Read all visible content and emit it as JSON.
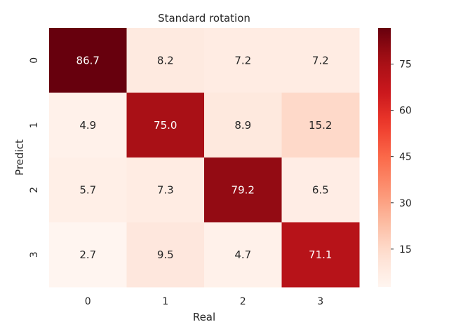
{
  "chart_data": {
    "type": "heatmap",
    "title": "Standard rotation",
    "xlabel": "Real",
    "ylabel": "Predict",
    "x_categories": [
      "0",
      "1",
      "2",
      "3"
    ],
    "y_categories": [
      "0",
      "1",
      "2",
      "3"
    ],
    "values": [
      [
        86.7,
        8.2,
        7.2,
        7.2
      ],
      [
        4.9,
        75.0,
        8.9,
        15.2
      ],
      [
        5.7,
        7.3,
        79.2,
        6.5
      ],
      [
        2.7,
        9.5,
        4.7,
        71.1
      ]
    ],
    "cell_labels": [
      [
        "86.7",
        "8.2",
        "7.2",
        "7.2"
      ],
      [
        "4.9",
        "75.0",
        "8.9",
        "15.2"
      ],
      [
        "5.7",
        "7.3",
        "79.2",
        "6.5"
      ],
      [
        "2.7",
        "9.5",
        "4.7",
        "71.1"
      ]
    ],
    "colormap": "Reds",
    "color_range": [
      2.7,
      86.7
    ],
    "colorbar_ticks": [
      15,
      30,
      45,
      60,
      75
    ],
    "colorbar_tick_labels": [
      "15",
      "30",
      "45",
      "60",
      "75"
    ],
    "grid": false,
    "legend": "colorbar-right"
  }
}
